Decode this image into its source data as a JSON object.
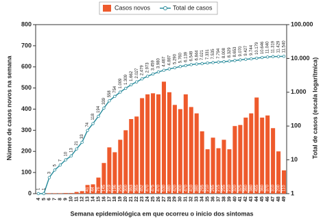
{
  "chart_data": {
    "type": "bar-line",
    "xlabel": "Semana epidemiológica em que ocorreu o início dos sintomas",
    "ylabel": "Número de casos novos na semana",
    "y2label": "Total de casos (escala logarítmica)",
    "categories": [
      "4",
      "5",
      "6",
      "7",
      "8",
      "9",
      "10",
      "11",
      "12",
      "13",
      "14",
      "15",
      "16",
      "17",
      "18",
      "19",
      "20",
      "21",
      "22",
      "23",
      "24",
      "25",
      "26",
      "27",
      "28",
      "29",
      "30",
      "31",
      "32",
      "33",
      "34",
      "35",
      "36",
      "37",
      "38",
      "39",
      "40",
      "41",
      "42",
      "43",
      "44",
      "45",
      "46",
      "47",
      "48",
      "49"
    ],
    "series": [
      {
        "name": "Casos novos",
        "color": "#ee5a2c",
        "kind": "bar",
        "values": [
          1,
          0,
          2,
          2,
          2,
          3,
          3,
          8,
          12,
          41,
          44,
          76,
          145,
          219,
          196,
          255,
          300,
          353,
          365,
          452,
          470,
          475,
          470,
          530,
          480,
          420,
          400,
          470,
          410,
          380,
          295,
          210,
          265,
          215,
          255,
          210,
          320,
          325,
          360,
          380,
          455,
          360,
          370,
          310,
          200,
          110
        ]
      },
      {
        "name": "Total de casos",
        "color": "#2a8c9c",
        "kind": "line",
        "axis": "y2",
        "values": [
          1,
          1,
          3,
          5,
          7,
          10,
          13,
          21,
          33,
          74,
          118,
          194,
          339,
          558,
          754,
          1009,
          1309,
          1662,
          2027,
          2479,
          2973,
          3459,
          3980,
          4467,
          4887,
          5290,
          5760,
          6139,
          6549,
          6844,
          7021,
          7331,
          7535,
          7794,
          8008,
          8329,
          8653,
          9070,
          9427,
          9744,
          10179,
          10646,
          11040,
          11319,
          11429,
          11540
        ],
        "value_labels": [
          "1",
          "1",
          "3",
          "5",
          "7",
          "10",
          "13",
          "21",
          "33",
          "74",
          "118",
          "194",
          "339",
          "558",
          "754",
          "1.009",
          "1.309",
          "1.662",
          "2.027",
          "2.479",
          "2.973",
          "3.459",
          "3.980",
          "4.467",
          "4.887",
          "5.290",
          "5.760",
          "6.139",
          "6.549",
          "6.844",
          "7.021",
          "7.331",
          "7.535",
          "7.794",
          "8.008",
          "8.329",
          "8.653",
          "9.070",
          "9.427",
          "9.744",
          "10.179",
          "10.646",
          "11.040",
          "11.319",
          "11.429",
          "11.540"
        ]
      }
    ],
    "ylim": [
      0,
      800
    ],
    "yticks": [
      0,
      100,
      200,
      300,
      400,
      500,
      600,
      700,
      800
    ],
    "y2lim": [
      1,
      100000
    ],
    "y2log": true,
    "y2ticks": [
      1,
      10,
      100,
      {
        "value": 1000,
        "label": "1.000"
      },
      {
        "value": 10000,
        "label": "10.000"
      },
      {
        "value": 100000,
        "label": "100.000"
      }
    ],
    "legend": "top"
  }
}
